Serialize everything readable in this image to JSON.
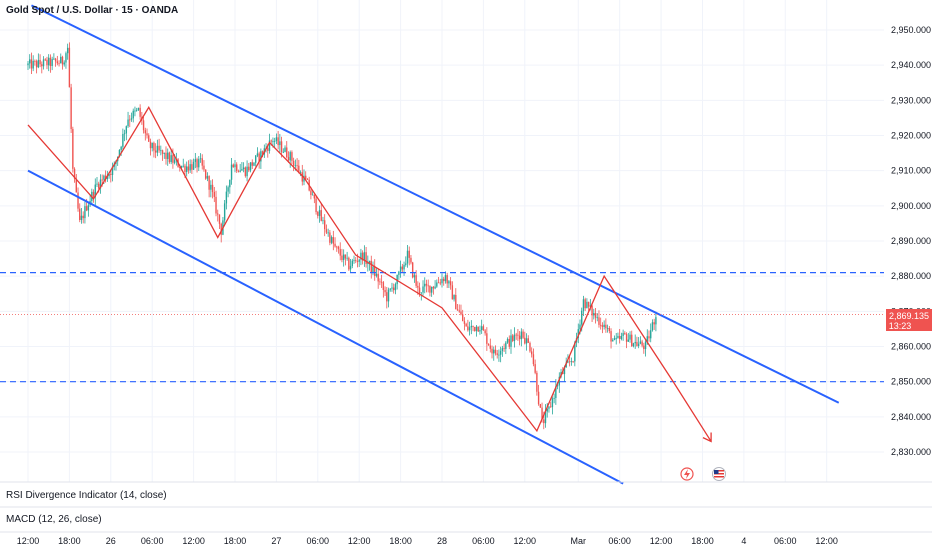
{
  "header": {
    "symbol": "Gold Spot / U.S. Dollar · 15 · OANDA"
  },
  "indicators": {
    "rsi": "RSI Divergence Indicator (14, close)",
    "macd": "MACD (12, 26, close)"
  },
  "price_tag": {
    "price": "2,869.135",
    "countdown": "13:23"
  },
  "colors": {
    "up": "#26a69a",
    "down": "#ef5350",
    "channel": "#2962ff",
    "zigzag": "#e53935",
    "hline": "#2962ff"
  },
  "chart_data": {
    "type": "candlestick",
    "title": "Gold Spot / U.S. Dollar · 15 · OANDA",
    "ylim": [
      2823,
      2956
    ],
    "y_ticks": [
      "2,950.000",
      "2,940.000",
      "2,930.000",
      "2,920.000",
      "2,910.000",
      "2,900.000",
      "2,890.000",
      "2,880.000",
      "2,870.000",
      "2,860.000",
      "2,850.000",
      "2,840.000",
      "2,830.000"
    ],
    "y_tick_values": [
      2950,
      2940,
      2930,
      2920,
      2910,
      2900,
      2890,
      2880,
      2870,
      2860,
      2850,
      2840,
      2830
    ],
    "x_ticks": [
      "12:00",
      "18:00",
      "26",
      "06:00",
      "12:00",
      "18:00",
      "27",
      "06:00",
      "12:00",
      "18:00",
      "28",
      "06:00",
      "12:00",
      "Mar",
      "06:00",
      "12:00",
      "18:00",
      "4",
      "06:00",
      "12:00"
    ],
    "x_tick_index": [
      0,
      24,
      48,
      72,
      96,
      120,
      144,
      168,
      192,
      216,
      240,
      264,
      288,
      319,
      343,
      367,
      391,
      415,
      439,
      463
    ],
    "current_price": 2869.135,
    "horizontal_levels": [
      2881,
      2850
    ],
    "channel_upper": [
      {
        "i": 2,
        "p": 2957
      },
      {
        "i": 470,
        "p": 2844
      }
    ],
    "channel_lower": [
      {
        "i": 0,
        "p": 2910
      },
      {
        "i": 345,
        "p": 2821
      }
    ],
    "zigzag": [
      {
        "i": 0,
        "p": 2923
      },
      {
        "i": 38,
        "p": 2902
      },
      {
        "i": 70,
        "p": 2928
      },
      {
        "i": 110,
        "p": 2891
      },
      {
        "i": 140,
        "p": 2918
      },
      {
        "i": 160,
        "p": 2908
      },
      {
        "i": 190,
        "p": 2886
      },
      {
        "i": 240,
        "p": 2871
      },
      {
        "i": 295,
        "p": 2836
      },
      {
        "i": 334,
        "p": 2880
      },
      {
        "i": 374,
        "p": 2850
      },
      {
        "i": 396,
        "p": 2833
      }
    ],
    "projection_label_arrow": true,
    "series_anchors": [
      {
        "i": 0,
        "p": 2940
      },
      {
        "i": 20,
        "p": 2941
      },
      {
        "i": 23,
        "p": 2945
      },
      {
        "i": 26,
        "p": 2910
      },
      {
        "i": 30,
        "p": 2895
      },
      {
        "i": 34,
        "p": 2900
      },
      {
        "i": 40,
        "p": 2906
      },
      {
        "i": 50,
        "p": 2911
      },
      {
        "i": 58,
        "p": 2925
      },
      {
        "i": 64,
        "p": 2927
      },
      {
        "i": 70,
        "p": 2917
      },
      {
        "i": 80,
        "p": 2914
      },
      {
        "i": 90,
        "p": 2911
      },
      {
        "i": 100,
        "p": 2912
      },
      {
        "i": 106,
        "p": 2905
      },
      {
        "i": 112,
        "p": 2893
      },
      {
        "i": 118,
        "p": 2912
      },
      {
        "i": 126,
        "p": 2910
      },
      {
        "i": 134,
        "p": 2914
      },
      {
        "i": 142,
        "p": 2919
      },
      {
        "i": 152,
        "p": 2914
      },
      {
        "i": 162,
        "p": 2906
      },
      {
        "i": 170,
        "p": 2896
      },
      {
        "i": 178,
        "p": 2888
      },
      {
        "i": 186,
        "p": 2883
      },
      {
        "i": 194,
        "p": 2886
      },
      {
        "i": 202,
        "p": 2880
      },
      {
        "i": 208,
        "p": 2874
      },
      {
        "i": 214,
        "p": 2879
      },
      {
        "i": 220,
        "p": 2886
      },
      {
        "i": 226,
        "p": 2876
      },
      {
        "i": 234,
        "p": 2877
      },
      {
        "i": 242,
        "p": 2880
      },
      {
        "i": 248,
        "p": 2872
      },
      {
        "i": 254,
        "p": 2865
      },
      {
        "i": 262,
        "p": 2866
      },
      {
        "i": 270,
        "p": 2858
      },
      {
        "i": 278,
        "p": 2861
      },
      {
        "i": 286,
        "p": 2864
      },
      {
        "i": 292,
        "p": 2859
      },
      {
        "i": 298,
        "p": 2838
      },
      {
        "i": 302,
        "p": 2842
      },
      {
        "i": 308,
        "p": 2851
      },
      {
        "i": 316,
        "p": 2857
      },
      {
        "i": 322,
        "p": 2873
      },
      {
        "i": 328,
        "p": 2869
      },
      {
        "i": 334,
        "p": 2866
      },
      {
        "i": 340,
        "p": 2861
      },
      {
        "i": 346,
        "p": 2863
      },
      {
        "i": 352,
        "p": 2861
      },
      {
        "i": 358,
        "p": 2860
      },
      {
        "i": 364,
        "p": 2869
      }
    ]
  }
}
